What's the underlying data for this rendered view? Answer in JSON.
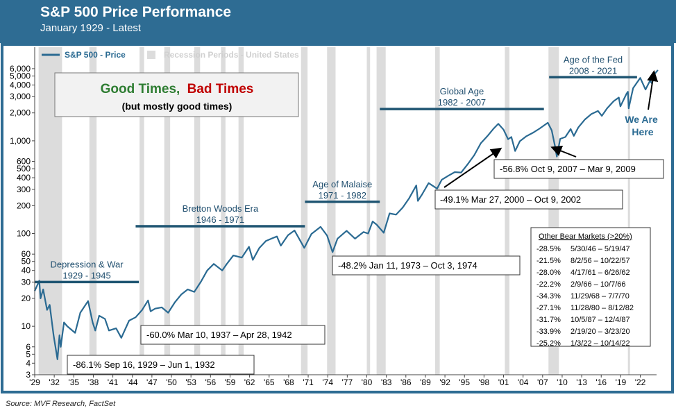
{
  "header": {
    "title": "S&P 500 Price Performance",
    "subtitle": "January 1929 - Latest"
  },
  "footer": {
    "source": "Source: MVF Research, FactSet"
  },
  "colors": {
    "header_bg": "#2e6c93",
    "series": "#2a6a92",
    "era_bar": "#1f5572",
    "recession": "#dcdcdc",
    "good": "#2e7d32",
    "bad": "#c00000"
  },
  "callout": {
    "good": "Good Times,",
    "bad": "Bad Times",
    "sub": "(but mostly good times)"
  },
  "chart_data": {
    "type": "line",
    "yscale": "log",
    "ylim": [
      3,
      7000
    ],
    "xlim": [
      1929,
      2024.5
    ],
    "y_ticks": [
      3,
      4,
      5,
      6,
      10,
      20,
      30,
      40,
      50,
      60,
      100,
      200,
      300,
      400,
      500,
      600,
      1000,
      2000,
      3000,
      4000,
      5000,
      6000
    ],
    "y_tick_labels": [
      "3",
      "4",
      "5",
      "6",
      "10",
      "20",
      "30",
      "40",
      "50",
      "60",
      "100",
      "200",
      "300",
      "400",
      "500",
      "600",
      "1,000",
      "2,000",
      "3,000",
      "4,000",
      "5,000",
      "6,000"
    ],
    "x_ticks": [
      1929,
      1932,
      1935,
      1938,
      1941,
      1944,
      1947,
      1950,
      1953,
      1956,
      1959,
      1962,
      1965,
      1968,
      1971,
      1974,
      1977,
      1980,
      1983,
      1986,
      1989,
      1992,
      1995,
      1998,
      2001,
      2004,
      2007,
      2010,
      2013,
      2016,
      2019,
      2022
    ],
    "x_tick_labels": [
      "'29",
      "'32",
      "'35",
      "'38",
      "'41",
      "'44",
      "'47",
      "'50",
      "'53",
      "'56",
      "'59",
      "'62",
      "'65",
      "'68",
      "'71",
      "'74",
      "'77",
      "'80",
      "'83",
      "'86",
      "'89",
      "'92",
      "'95",
      "'98",
      "'01",
      "'04",
      "'07",
      "'10",
      "'13",
      "'16",
      "'19",
      "'22"
    ],
    "legend": {
      "position": "top-left",
      "series_label": "S&P 500 - Price",
      "recession_label": "Recession Periods - United States"
    },
    "series": [
      {
        "name": "S&P 500 - Price",
        "points": [
          [
            1929.0,
            24
          ],
          [
            1929.7,
            31
          ],
          [
            1929.9,
            20
          ],
          [
            1930.3,
            25
          ],
          [
            1930.9,
            15
          ],
          [
            1931.3,
            17
          ],
          [
            1931.9,
            8
          ],
          [
            1932.5,
            4.4
          ],
          [
            1932.8,
            8
          ],
          [
            1933.0,
            6
          ],
          [
            1933.5,
            11
          ],
          [
            1934.0,
            10
          ],
          [
            1935.2,
            8.5
          ],
          [
            1936.0,
            14
          ],
          [
            1937.2,
            18.7
          ],
          [
            1937.9,
            11
          ],
          [
            1938.3,
            9
          ],
          [
            1938.9,
            13
          ],
          [
            1939.8,
            12
          ],
          [
            1940.4,
            9
          ],
          [
            1941.5,
            9.5
          ],
          [
            1942.3,
            7.5
          ],
          [
            1943.5,
            11.5
          ],
          [
            1944.5,
            12.5
          ],
          [
            1945.5,
            15
          ],
          [
            1946.4,
            19
          ],
          [
            1946.8,
            14.5
          ],
          [
            1947.5,
            15.5
          ],
          [
            1948.5,
            16
          ],
          [
            1949.5,
            14
          ],
          [
            1950.5,
            18
          ],
          [
            1951.5,
            22
          ],
          [
            1952.5,
            25
          ],
          [
            1953.5,
            23.5
          ],
          [
            1954.5,
            30
          ],
          [
            1955.5,
            40
          ],
          [
            1956.5,
            47
          ],
          [
            1957.8,
            40
          ],
          [
            1958.5,
            47
          ],
          [
            1959.5,
            58
          ],
          [
            1960.8,
            55
          ],
          [
            1961.9,
            72
          ],
          [
            1962.5,
            52
          ],
          [
            1963.5,
            70
          ],
          [
            1964.5,
            83
          ],
          [
            1965.5,
            89
          ],
          [
            1966.2,
            93
          ],
          [
            1966.8,
            74
          ],
          [
            1967.9,
            96
          ],
          [
            1968.9,
            108
          ],
          [
            1970.4,
            70
          ],
          [
            1971.5,
            99
          ],
          [
            1972.9,
            118
          ],
          [
            1973.9,
            95
          ],
          [
            1974.75,
            63
          ],
          [
            1975.5,
            88
          ],
          [
            1976.9,
            107
          ],
          [
            1978.2,
            88
          ],
          [
            1979.5,
            104
          ],
          [
            1980.2,
            100
          ],
          [
            1980.9,
            135
          ],
          [
            1981.5,
            125
          ],
          [
            1982.6,
            102
          ],
          [
            1983.5,
            165
          ],
          [
            1984.5,
            160
          ],
          [
            1985.5,
            190
          ],
          [
            1986.5,
            240
          ],
          [
            1987.6,
            330
          ],
          [
            1987.85,
            225
          ],
          [
            1988.5,
            265
          ],
          [
            1989.5,
            350
          ],
          [
            1990.8,
            305
          ],
          [
            1991.5,
            380
          ],
          [
            1992.5,
            420
          ],
          [
            1993.5,
            460
          ],
          [
            1994.5,
            455
          ],
          [
            1995.5,
            560
          ],
          [
            1996.5,
            700
          ],
          [
            1997.5,
            940
          ],
          [
            1998.5,
            1120
          ],
          [
            1999.5,
            1360
          ],
          [
            2000.2,
            1527
          ],
          [
            2001.0,
            1320
          ],
          [
            2001.7,
            1040
          ],
          [
            2002.2,
            1100
          ],
          [
            2002.78,
            776
          ],
          [
            2003.5,
            990
          ],
          [
            2004.5,
            1120
          ],
          [
            2005.5,
            1220
          ],
          [
            2006.5,
            1350
          ],
          [
            2007.8,
            1565
          ],
          [
            2008.4,
            1300
          ],
          [
            2008.9,
            880
          ],
          [
            2009.18,
            676
          ],
          [
            2009.7,
            1050
          ],
          [
            2010.5,
            1100
          ],
          [
            2011.3,
            1340
          ],
          [
            2011.8,
            1130
          ],
          [
            2012.5,
            1400
          ],
          [
            2013.5,
            1700
          ],
          [
            2014.5,
            1950
          ],
          [
            2015.5,
            2100
          ],
          [
            2016.1,
            1860
          ],
          [
            2016.9,
            2240
          ],
          [
            2017.9,
            2670
          ],
          [
            2018.7,
            2930
          ],
          [
            2018.95,
            2350
          ],
          [
            2019.9,
            3230
          ],
          [
            2020.1,
            3380
          ],
          [
            2020.22,
            2237
          ],
          [
            2020.9,
            3700
          ],
          [
            2021.99,
            4766
          ],
          [
            2022.8,
            3577
          ],
          [
            2023.5,
            4450
          ],
          [
            2023.8,
            4150
          ],
          [
            2024.2,
            5250
          ],
          [
            2024.7,
            5800
          ]
        ]
      }
    ],
    "recessions": [
      [
        1929.6,
        1933.2
      ],
      [
        1937.4,
        1938.5
      ],
      [
        1945.1,
        1945.8
      ],
      [
        1948.9,
        1949.8
      ],
      [
        1953.5,
        1954.4
      ],
      [
        1957.6,
        1958.3
      ],
      [
        1960.3,
        1961.1
      ],
      [
        1969.9,
        1970.9
      ],
      [
        1973.9,
        1975.2
      ],
      [
        1980.0,
        1980.5
      ],
      [
        1981.5,
        1982.9
      ],
      [
        1990.5,
        1991.2
      ],
      [
        2001.2,
        2001.9
      ],
      [
        2007.9,
        2009.5
      ],
      [
        2020.1,
        2020.3
      ]
    ],
    "eras": [
      {
        "label": "Depression & War",
        "years": "1929 - 1945",
        "start": 1929,
        "end": 1945,
        "level": 30
      },
      {
        "label": "Bretton Woods Era",
        "years": "1946 - 1971",
        "start": 1944.5,
        "end": 1970.5,
        "level": 120
      },
      {
        "label": "Age of Malaise",
        "years": "1971 - 1982",
        "start": 1970.5,
        "end": 1982,
        "level": 220
      },
      {
        "label": "Global Age",
        "years": "1982 - 2007",
        "start": 1982,
        "end": 2007.2,
        "level": 2200
      },
      {
        "label": "Age of the Fed",
        "years": "2008 - 2021",
        "start": 2008,
        "end": 2021.5,
        "level": 4850
      }
    ],
    "annotations": [
      {
        "text": "-86.1% Sep 16, 1929 – Jun 1, 1932"
      },
      {
        "text": "-60.0% Mar 10, 1937 – Apr 28, 1942"
      },
      {
        "text": "-48.2% Jan 11, 1973 – Oct 3, 1974"
      },
      {
        "text": "-49.1% Mar 27, 2000 – Oct 9, 2002"
      },
      {
        "text": "-56.8% Oct 9, 2007 – Mar 9, 2009"
      },
      {
        "text": "We Are Here"
      }
    ],
    "other_bear_markets": {
      "title": "Other Bear Markets (>20%)",
      "rows": [
        {
          "pct": "-28.5%",
          "dates": "5/30/46 – 5/19/47"
        },
        {
          "pct": "-21.5%",
          "dates": "8/2/56 – 10/22/57"
        },
        {
          "pct": "-28.0%",
          "dates": "4/17/61 – 6/26/62"
        },
        {
          "pct": "-22.2%",
          "dates": "2/9/66 – 10/7/66"
        },
        {
          "pct": "-34.3%",
          "dates": "11/29/68 – 7/7/70"
        },
        {
          "pct": "-27.1%",
          "dates": "11/28/80 – 8/12/82"
        },
        {
          "pct": "-31.7%",
          "dates": "10/5/87 – 12/4/87"
        },
        {
          "pct": "-33.9%",
          "dates": "2/19/20 – 3/23/20"
        },
        {
          "pct": "-25.2%",
          "dates": "1/3/22 – 10/14/22"
        }
      ]
    }
  }
}
